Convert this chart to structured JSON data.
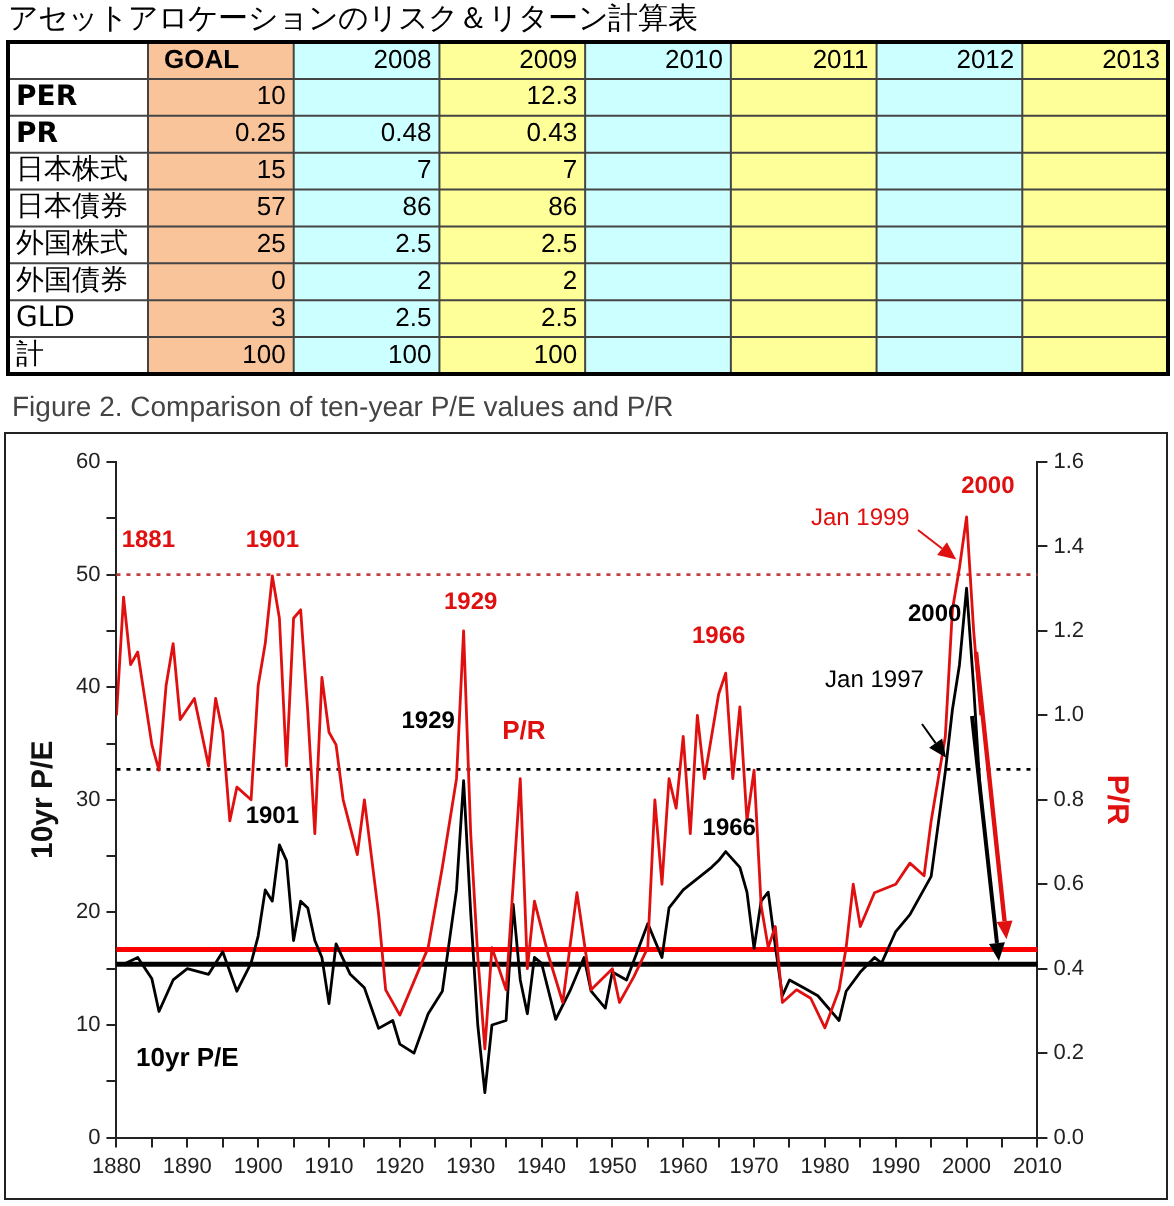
{
  "chart_data": [
    {
      "type": "heatmap",
      "title": "アセットアロケーションのリスク＆リターン計算表",
      "categories": [
        "GOAL",
        "2008",
        "2009",
        "2010",
        "2011",
        "2012",
        "2013"
      ],
      "y_categories": [
        "PER",
        "PR",
        "日本株式",
        "日本債券",
        "外国株式",
        "外国債券",
        "GLD",
        "計"
      ],
      "cells": [
        [
          10,
          null,
          12.3,
          null,
          null,
          null,
          null
        ],
        [
          0.25,
          0.48,
          0.43,
          null,
          null,
          null,
          null
        ],
        [
          15,
          7,
          7,
          null,
          null,
          null,
          null
        ],
        [
          57,
          86,
          86,
          null,
          null,
          null,
          null
        ],
        [
          25,
          2.5,
          2.5,
          null,
          null,
          null,
          null
        ],
        [
          0,
          2,
          2,
          null,
          null,
          null,
          null
        ],
        [
          3,
          2.5,
          2.5,
          null,
          null,
          null,
          null
        ],
        [
          100,
          100,
          100,
          null,
          null,
          null,
          null
        ]
      ],
      "data_labels": true
    },
    {
      "type": "line",
      "title": "Figure 2. Comparison of ten-year P/E values and P/R",
      "ylabel": "10yr P/E",
      "y2label": "P/R",
      "legend": false,
      "grid": false,
      "marker": "none",
      "line_style": "solid",
      "xlim": [
        1880,
        2010
      ],
      "xticks": [
        1880,
        {
          "value": 1885,
          "label": null
        },
        1890,
        {
          "value": 1895,
          "label": null
        },
        1900,
        {
          "value": 1905,
          "label": null
        },
        1910,
        {
          "value": 1915,
          "label": null
        },
        1920,
        {
          "value": 1925,
          "label": null
        },
        1930,
        {
          "value": 1935,
          "label": null
        },
        1940,
        {
          "value": 1945,
          "label": null
        },
        1950,
        {
          "value": 1955,
          "label": null
        },
        1960,
        {
          "value": 1965,
          "label": null
        },
        1970,
        {
          "value": 1975,
          "label": null
        },
        1980,
        {
          "value": 1985,
          "label": null
        },
        1990,
        {
          "value": 1995,
          "label": null
        },
        2000,
        {
          "value": 2005,
          "label": null
        },
        2010
      ],
      "ylim": [
        0,
        60
      ],
      "yticks": [
        0,
        {
          "value": 5,
          "label": null
        },
        10,
        {
          "value": 15,
          "label": null
        },
        20,
        {
          "value": 25,
          "label": null
        },
        30,
        {
          "value": 35,
          "label": null
        },
        40,
        {
          "value": 45,
          "label": null
        },
        50,
        {
          "value": 55,
          "label": null
        },
        60
      ],
      "y2lim": [
        0,
        1.6
      ],
      "y2ticks": [
        {
          "value": 0,
          "label": "0.0"
        },
        {
          "value": 0.2,
          "label": "0.2"
        },
        {
          "value": 0.4,
          "label": "0.4"
        },
        {
          "value": 0.6,
          "label": "0.6"
        },
        {
          "value": 0.8,
          "label": "0.8"
        },
        {
          "value": 1,
          "label": "1.0"
        },
        {
          "value": 1.2,
          "label": "1.2"
        },
        {
          "value": 1.4,
          "label": "1.4"
        },
        {
          "value": 1.6,
          "label": "1.6"
        }
      ],
      "series": [
        {
          "name": "P/R",
          "color": "#e01010",
          "axis": "y2",
          "x": [
            1880,
            1881,
            1882,
            1883,
            1885,
            1886,
            1887,
            1888,
            1889,
            1891,
            1893,
            1894,
            1895,
            1896,
            1897,
            1899,
            1900,
            1901,
            1902,
            1903,
            1904,
            1905,
            1906,
            1907,
            1908,
            1909,
            1910,
            1911,
            1912,
            1914,
            1915,
            1917,
            1918,
            1920,
            1922,
            1924,
            1926,
            1928,
            1929,
            1930,
            1931,
            1932,
            1933,
            1935,
            1937,
            1938,
            1939,
            1941,
            1943,
            1945,
            1947,
            1950,
            1951,
            1953,
            1955,
            1956,
            1957,
            1958,
            1959,
            1960,
            1961,
            1962,
            1963,
            1965,
            1966,
            1967,
            1968,
            1969,
            1970,
            1971,
            1972,
            1973,
            1974,
            1976,
            1978,
            1980,
            1982,
            1983,
            1984,
            1985,
            1987,
            1990,
            1992,
            1994,
            1995,
            1996,
            1997,
            1998,
            1999,
            2000,
            2001,
            2002
          ],
          "values": [
            1.0,
            1.28,
            1.12,
            1.15,
            0.93,
            0.87,
            1.07,
            1.17,
            0.99,
            1.04,
            0.88,
            1.04,
            0.96,
            0.75,
            0.83,
            0.8,
            1.07,
            1.17,
            1.33,
            1.23,
            0.88,
            1.23,
            1.25,
            1.01,
            0.72,
            1.09,
            0.96,
            0.93,
            0.8,
            0.67,
            0.8,
            0.53,
            0.35,
            0.29,
            0.37,
            0.45,
            0.64,
            0.85,
            1.2,
            0.72,
            0.43,
            0.21,
            0.45,
            0.35,
            0.85,
            0.4,
            0.56,
            0.43,
            0.32,
            0.58,
            0.35,
            0.4,
            0.32,
            0.38,
            0.45,
            0.8,
            0.6,
            0.85,
            0.78,
            0.95,
            0.72,
            1.0,
            0.85,
            1.05,
            1.1,
            0.85,
            1.02,
            0.75,
            0.87,
            0.55,
            0.45,
            0.5,
            0.32,
            0.35,
            0.33,
            0.26,
            0.35,
            0.45,
            0.6,
            0.5,
            0.58,
            0.6,
            0.65,
            0.62,
            0.75,
            0.85,
            0.95,
            1.25,
            1.35,
            1.47,
            1.2,
            1.0
          ]
        },
        {
          "name": "10yr P/E",
          "color": "#000000",
          "x": [
            1881,
            1883,
            1885,
            1886,
            1888,
            1890,
            1893,
            1895,
            1897,
            1899,
            1900,
            1901,
            1902,
            1903,
            1904,
            1905,
            1906,
            1907,
            1908,
            1909,
            1910,
            1911,
            1913,
            1915,
            1917,
            1919,
            1920,
            1922,
            1924,
            1926,
            1928,
            1929,
            1930,
            1931,
            1932,
            1933,
            1935,
            1936,
            1937,
            1938,
            1939,
            1940,
            1942,
            1944,
            1946,
            1947,
            1949,
            1950,
            1952,
            1955,
            1957,
            1958,
            1960,
            1962,
            1964,
            1965,
            1966,
            1968,
            1969,
            1970,
            1971,
            1972,
            1973,
            1974,
            1975,
            1977,
            1979,
            1982,
            1983,
            1985,
            1987,
            1988,
            1990,
            1992,
            1995,
            1997,
            1998,
            1999,
            2000,
            2001,
            2002
          ],
          "values": [
            15.4,
            16,
            14.1,
            11.2,
            14,
            15,
            14.5,
            16.5,
            13,
            15.5,
            17.9,
            22,
            21,
            26,
            24.6,
            17.5,
            21,
            20.4,
            17.5,
            16,
            11.9,
            17.2,
            14.5,
            13.3,
            9.7,
            10.4,
            8.3,
            7.5,
            11,
            13,
            22,
            31.7,
            20,
            10,
            4,
            10,
            10.4,
            20.7,
            14,
            11,
            16,
            15.5,
            10.5,
            13,
            16,
            13,
            11.5,
            14.7,
            14,
            19,
            16,
            20.4,
            22,
            23,
            24,
            24.6,
            25.4,
            24,
            21.8,
            16.8,
            21,
            21.8,
            17,
            12.6,
            14,
            13.3,
            12.6,
            10.4,
            13,
            14.7,
            16,
            15.5,
            18.3,
            19.8,
            23.2,
            32.5,
            38,
            42,
            48.8,
            40,
            30
          ]
        }
      ],
      "ref_lines": [
        {
          "axis": "y",
          "value": 50,
          "color": "#c04040",
          "line_style": "dotted"
        },
        {
          "axis": "y",
          "value": 32.7,
          "color": "#000000",
          "line_style": "dotted"
        },
        {
          "axis": "y",
          "value": 16.7,
          "color": "#ff0000",
          "line_style": "solid"
        },
        {
          "axis": "y",
          "value": 15.4,
          "color": "#000000",
          "line_style": "solid"
        }
      ],
      "annotations": [
        "1881",
        "1901",
        "1929",
        "1966",
        "2000",
        "Jan 1999",
        "1929",
        "1901",
        "1966",
        "2000",
        "Jan 1997"
      ]
    }
  ]
}
